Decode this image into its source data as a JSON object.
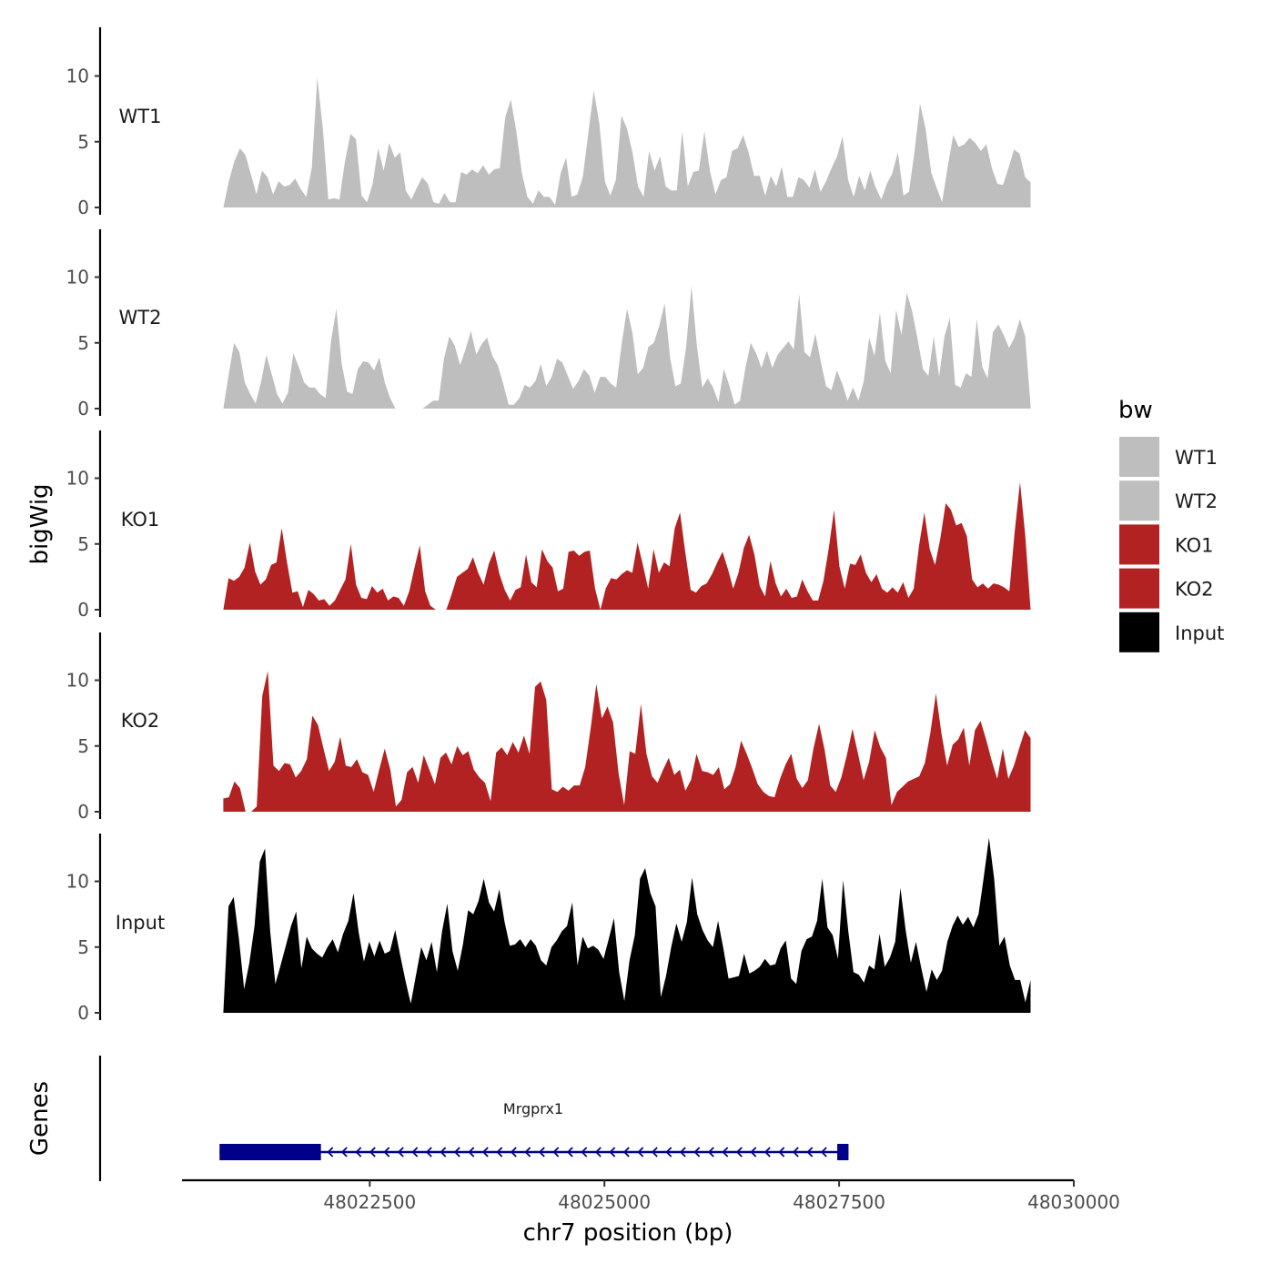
{
  "chart_data": {
    "type": "area",
    "title": "",
    "chromosome": "chr7",
    "xlabel": "chr7 position (bp)",
    "ylabel": "bigWig",
    "gene_track_label": "Genes",
    "xlim": [
      48020500,
      48030000
    ],
    "x_ticks": [
      48022500,
      48025000,
      48027500,
      48030000
    ],
    "x_tick_labels": [
      "48022500",
      "48025000",
      "48027500",
      "48030000"
    ],
    "signal_range": [
      48020940,
      48029540
    ],
    "y_ticks": [
      0,
      5,
      10
    ],
    "y_tick_labels": [
      "0",
      "5",
      "10"
    ],
    "ylim": [
      0,
      13.5
    ],
    "legend": {
      "title": "bw",
      "position": "right",
      "entries": [
        {
          "label": "WT1",
          "color": "#bebebe"
        },
        {
          "label": "WT2",
          "color": "#bebebe"
        },
        {
          "label": "KO1",
          "color": "#b22222"
        },
        {
          "label": "KO2",
          "color": "#b22222"
        },
        {
          "label": "Input",
          "color": "#000000"
        }
      ]
    },
    "series": [
      {
        "name": "WT1",
        "color": "#bebebe",
        "values": [
          0,
          2,
          3.5,
          4.5,
          4,
          2.5,
          1,
          2.8,
          2.3,
          1,
          2,
          1.6,
          1.7,
          2.2,
          1.4,
          0.8,
          3,
          9.9,
          6,
          0.6,
          0.7,
          0.6,
          3.5,
          5.6,
          5.2,
          0.9,
          0.4,
          1.8,
          4.5,
          2.8,
          4.9,
          3.8,
          4.2,
          1.3,
          0.6,
          1.5,
          2.3,
          1.8,
          0.4,
          0.3,
          1.1,
          0.4,
          0.4,
          2.7,
          2.5,
          2.9,
          2.6,
          3.2,
          2.5,
          2.9,
          3,
          6.9,
          8.2,
          5.8,
          2.6,
          0.8,
          0.3,
          1.3,
          0.8,
          0.8,
          0.2,
          2.6,
          3.8,
          0.8,
          1,
          2.3,
          5.6,
          8.9,
          6.4,
          2,
          0.9,
          2.1,
          7,
          6,
          4.2,
          1.6,
          0.8,
          4.3,
          2.8,
          3.9,
          1.6,
          1.3,
          1.3,
          5.8,
          1.6,
          2.7,
          2.8,
          5.8,
          2.8,
          1,
          2.1,
          2.3,
          4.3,
          4.5,
          5.5,
          4.2,
          2.4,
          2.4,
          0.9,
          2.4,
          1.6,
          3.1,
          0.8,
          0.8,
          2.3,
          2.1,
          1.5,
          2.9,
          1.2,
          2,
          3,
          3.9,
          5.4,
          2.1,
          0.8,
          2.4,
          1.3,
          2.8,
          1.5,
          0.6,
          1.8,
          2.6,
          4.2,
          0.9,
          1.2,
          4.2,
          7.9,
          6,
          2.7,
          1.5,
          0.4,
          3.1,
          5.5,
          4.6,
          4.8,
          5.3,
          4.9,
          4.3,
          4.8,
          3,
          1.8,
          1.7,
          3,
          4.4,
          4.1,
          2.3,
          1.9
        ]
      },
      {
        "name": "WT2",
        "color": "#bebebe",
        "values": [
          0,
          2.6,
          5,
          4.3,
          2,
          1.1,
          0.4,
          2,
          4.1,
          2.6,
          1.1,
          0.4,
          1.2,
          4.2,
          3.2,
          2,
          1.6,
          1.6,
          1.1,
          0.8,
          5.1,
          7.6,
          3.4,
          1.3,
          1.1,
          3,
          3.6,
          3.5,
          2.9,
          3.9,
          2,
          0.8,
          0,
          0,
          0,
          0,
          0,
          0,
          0.3,
          0.6,
          0.6,
          3.8,
          5.5,
          4.8,
          3.3,
          4.5,
          5.9,
          4.1,
          4.9,
          5.4,
          4,
          3.3,
          1.9,
          0.3,
          0.3,
          0.8,
          1.8,
          1.6,
          2.1,
          3.4,
          1.7,
          2.4,
          3.8,
          3.5,
          2.5,
          1.5,
          2.1,
          3,
          2.5,
          1.2,
          2.4,
          2.4,
          1.9,
          1.6,
          4.9,
          7.6,
          5.8,
          2.6,
          3.1,
          4.7,
          5,
          6.3,
          8,
          3.9,
          1.7,
          1.9,
          4.7,
          9.3,
          4.7,
          1.6,
          2.3,
          1.6,
          0.5,
          3,
          1.8,
          0.3,
          0.6,
          3.1,
          5,
          4.2,
          3.1,
          4.4,
          3.1,
          4.1,
          4.6,
          5.1,
          4.5,
          8.7,
          4.3,
          3.9,
          5.7,
          3.6,
          1.7,
          1.4,
          2.9,
          1.9,
          0.6,
          1.6,
          0.6,
          2.1,
          5.4,
          4,
          7.3,
          3.6,
          2.7,
          7.5,
          5.6,
          8.8,
          7.4,
          5.3,
          3,
          2.5,
          5.5,
          2.4,
          5.5,
          6.9,
          1.8,
          1.6,
          2.7,
          2.4,
          6.8,
          3.2,
          2.3,
          5.8,
          6.4,
          5.6,
          4.6,
          5.4,
          6.8,
          5.5,
          0.2
        ]
      },
      {
        "name": "KO1",
        "color": "#b22222",
        "values": [
          0,
          2.4,
          2.2,
          2.5,
          3.2,
          5.1,
          2.9,
          1.9,
          2.3,
          3.4,
          3.6,
          6.2,
          3.6,
          1.3,
          1.4,
          0.2,
          1.5,
          1.2,
          0.7,
          0.8,
          0.3,
          0.7,
          1.5,
          2.3,
          5,
          1.9,
          0.9,
          0.8,
          1.8,
          1.3,
          1.6,
          0.7,
          1,
          0.9,
          0.3,
          1.4,
          3.2,
          4.9,
          1.4,
          0.3,
          0,
          0,
          0,
          1.2,
          2.5,
          2.8,
          3.1,
          4,
          2.8,
          1.9,
          3.5,
          4.5,
          2.7,
          1.5,
          0.7,
          1.5,
          1.7,
          4.2,
          2.1,
          1.7,
          4.6,
          3.7,
          3.2,
          1.4,
          1.6,
          4.4,
          4.5,
          4.1,
          4.4,
          4.5,
          1.6,
          0,
          1.6,
          2.4,
          2.3,
          2.7,
          3,
          2.8,
          5.1,
          3.4,
          1.6,
          4.6,
          2.8,
          3.6,
          3.3,
          6.2,
          7.4,
          4.3,
          1.5,
          1.3,
          1.8,
          2,
          2.7,
          3.6,
          4.4,
          3.1,
          1.6,
          2.8,
          4.7,
          5.7,
          4.2,
          1.8,
          1,
          3.7,
          2,
          1,
          1.6,
          0.9,
          1,
          2.3,
          1.4,
          0.7,
          0.7,
          2.2,
          4.7,
          7.6,
          3.3,
          1.6,
          3.5,
          3.4,
          4.2,
          2.8,
          2.1,
          2.7,
          1.6,
          1.3,
          1.7,
          1.3,
          2.1,
          0.9,
          1.6,
          4.9,
          7.4,
          4.6,
          3.4,
          5.4,
          8.1,
          7.6,
          6.4,
          6.6,
          5.6,
          2.3,
          1.7,
          2,
          1.6,
          2,
          1.9,
          1.7,
          1.4,
          5.9,
          9.7,
          5.6,
          0
        ]
      },
      {
        "name": "KO2",
        "color": "#b22222",
        "values": [
          1,
          1.1,
          2.3,
          1.8,
          0,
          0,
          0.4,
          8.8,
          10.7,
          3.5,
          3.1,
          3.7,
          3.6,
          2.6,
          3.1,
          4,
          7.3,
          6.6,
          4.8,
          3.1,
          3.8,
          5.7,
          3.5,
          3.4,
          4,
          3,
          2.8,
          1.5,
          3.2,
          4.8,
          3.2,
          0.4,
          0.9,
          3,
          3.4,
          2.2,
          4.3,
          3.2,
          2.1,
          4.1,
          4.5,
          3.6,
          5,
          4.3,
          4.6,
          3.2,
          2.6,
          2.2,
          0.8,
          4.5,
          4.9,
          4.3,
          5.3,
          4.5,
          5.8,
          4.4,
          9.5,
          9.9,
          8.5,
          1.7,
          1.5,
          1.9,
          1.6,
          2,
          2,
          3.4,
          6.4,
          9.7,
          7.1,
          8,
          6.8,
          2.9,
          0.5,
          4.6,
          4.4,
          8.2,
          4.4,
          2.7,
          2.2,
          3.2,
          4.1,
          2.8,
          3.2,
          1.6,
          2.4,
          4.4,
          3.1,
          3,
          2.8,
          3.4,
          1.7,
          2.1,
          3.4,
          5.4,
          4.4,
          3.3,
          2.1,
          1.5,
          1.2,
          1.1,
          2.5,
          3.6,
          4.4,
          2.5,
          1.8,
          2.4,
          4.8,
          6.7,
          4.7,
          2,
          1.5,
          2.6,
          4.3,
          6.3,
          4.4,
          2.4,
          3.8,
          6.2,
          4.9,
          4.1,
          0.5,
          1.5,
          1.9,
          2.3,
          2.5,
          2.7,
          3.7,
          6,
          9,
          5.9,
          3.5,
          5.1,
          5.5,
          6.4,
          3.5,
          6.2,
          6.9,
          5.5,
          3.9,
          2.5,
          4.8,
          2.5,
          3.5,
          4.9,
          6.2,
          5.6
        ]
      },
      {
        "name": "Input",
        "color": "#000000",
        "values": [
          0,
          8.1,
          8.8,
          5.6,
          1.8,
          3.8,
          6.6,
          11.5,
          12.5,
          6.2,
          2.2,
          3.6,
          5.1,
          6.6,
          7.7,
          3.4,
          5.8,
          4.9,
          4.5,
          4.2,
          5,
          5.6,
          4.6,
          6,
          7,
          9.1,
          6.1,
          3.9,
          5.4,
          4.3,
          5.5,
          4.5,
          4.7,
          6.3,
          4.3,
          2.4,
          0.7,
          2.9,
          5,
          4,
          5.4,
          3.1,
          6.2,
          8.3,
          4.7,
          3.2,
          5.2,
          7.8,
          7.5,
          8.5,
          10.2,
          8.4,
          7.7,
          9.4,
          6.9,
          5.1,
          5.2,
          5.6,
          5,
          5.6,
          5.1,
          4,
          3.6,
          5,
          5.5,
          6.2,
          6.6,
          8.4,
          3.6,
          5.8,
          4.9,
          5.1,
          4.8,
          4.1,
          5.6,
          7.2,
          3.1,
          0.9,
          4,
          5.9,
          10.2,
          11,
          9.1,
          8.1,
          1.2,
          2.8,
          5,
          6.8,
          5.4,
          6.9,
          10.3,
          7.5,
          6.3,
          5.5,
          5,
          7,
          4.9,
          2.6,
          2.7,
          2.8,
          4.5,
          3,
          3.2,
          3.5,
          4.1,
          3.6,
          3.7,
          4.9,
          5.5,
          2.6,
          2.2,
          4.7,
          5.6,
          5.8,
          7,
          10.2,
          6.5,
          5.9,
          4.1,
          10.1,
          6.2,
          3.1,
          2.9,
          2.3,
          3.6,
          3.3,
          6,
          3.5,
          4.2,
          5.4,
          9.5,
          6.3,
          3.8,
          5.4,
          3.4,
          1.6,
          3.3,
          2.5,
          3.2,
          5.4,
          6.6,
          7.4,
          6.7,
          7.3,
          6.5,
          7.5,
          10.3,
          13.3,
          10.2,
          5.1,
          5.8,
          3.6,
          2.5,
          2.5,
          0.8,
          2.5
        ]
      }
    ],
    "genes": [
      {
        "name": "Mrgprx1",
        "strand": "-",
        "start": 48020900,
        "end": 48027600,
        "exons": [
          [
            48020900,
            48021980
          ],
          [
            48027480,
            48027600
          ]
        ]
      }
    ]
  }
}
